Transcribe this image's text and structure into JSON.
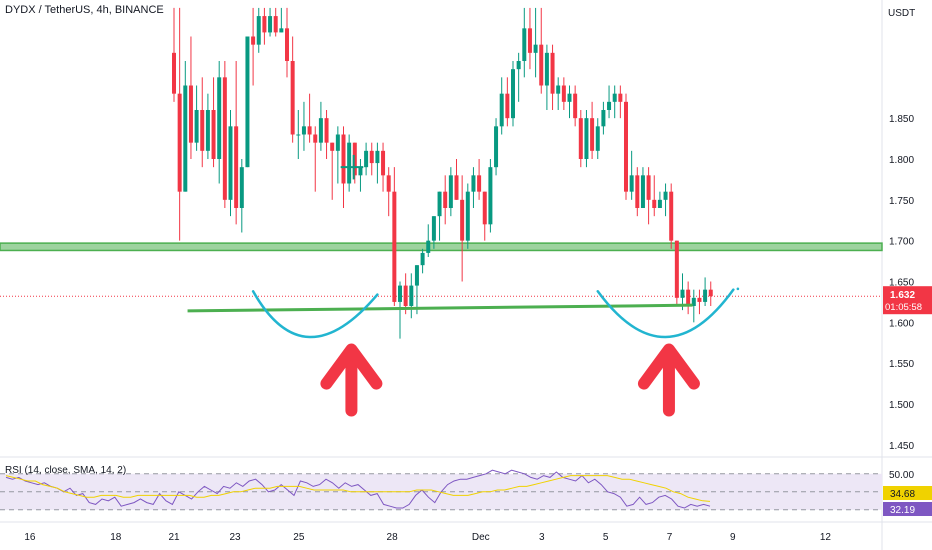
{
  "header": {
    "symbol_title": "DYDX / TetherUS, 4h, BINANCE",
    "currency": "USDT"
  },
  "price_label": {
    "value": "1.632",
    "countdown": "01:05:58",
    "color": "#f23645"
  },
  "colors": {
    "up": "#089981",
    "down": "#f23645",
    "zone": "#4caf50",
    "neckline": "#4caf50",
    "curve": "#22b5d0",
    "arrow": "#f23645",
    "rsi_line": "#7e57c2",
    "rsi_ma": "#f0d200",
    "rsi_band": "#ede7f6"
  },
  "chart_data": [
    {
      "type": "candlestick",
      "title": "DYDX / TetherUS, 4h, BINANCE",
      "ylabel": "USDT",
      "ylim": [
        1.435,
        1.985
      ],
      "y_ticks": [
        "1.850",
        "1.800",
        "1.750",
        "1.700",
        "1.650",
        "1.600",
        "1.550",
        "1.500",
        "1.450"
      ],
      "x_ticks": [
        {
          "label": "16",
          "index": -25.5
        },
        {
          "label": "18",
          "index": -10.3
        },
        {
          "label": "21",
          "index": 0
        },
        {
          "label": "23",
          "index": 10.8
        },
        {
          "label": "25",
          "index": 22.1
        },
        {
          "label": "28",
          "index": 38.6
        },
        {
          "label": "Dec",
          "index": 54.3
        },
        {
          "label": "3",
          "index": 65.1
        },
        {
          "label": "5",
          "index": 76.4
        },
        {
          "label": "7",
          "index": 87.7
        },
        {
          "label": "9",
          "index": 98.9
        },
        {
          "label": "12",
          "index": 115.3
        }
      ],
      "candles": [
        [
          1.93,
          1.985,
          1.87,
          1.88
        ],
        [
          1.88,
          1.985,
          1.7,
          1.76
        ],
        [
          1.76,
          1.92,
          1.76,
          1.89
        ],
        [
          1.89,
          1.95,
          1.8,
          1.82
        ],
        [
          1.82,
          1.89,
          1.81,
          1.86
        ],
        [
          1.86,
          1.9,
          1.79,
          1.81
        ],
        [
          1.81,
          1.88,
          1.8,
          1.86
        ],
        [
          1.86,
          1.9,
          1.79,
          1.8
        ],
        [
          1.8,
          1.92,
          1.77,
          1.9
        ],
        [
          1.9,
          1.92,
          1.74,
          1.75
        ],
        [
          1.75,
          1.86,
          1.73,
          1.84
        ],
        [
          1.84,
          1.92,
          1.72,
          1.74
        ],
        [
          1.74,
          1.8,
          1.71,
          1.79
        ],
        [
          1.79,
          1.95,
          1.79,
          1.95
        ],
        [
          1.95,
          1.985,
          1.89,
          1.94
        ],
        [
          1.94,
          1.985,
          1.93,
          1.975
        ],
        [
          1.975,
          1.985,
          1.94,
          1.955
        ],
        [
          1.955,
          1.985,
          1.95,
          1.975
        ],
        [
          1.975,
          1.985,
          1.95,
          1.955
        ],
        [
          1.955,
          1.985,
          1.955,
          1.96
        ],
        [
          1.96,
          1.985,
          1.9,
          1.92
        ],
        [
          1.92,
          1.95,
          1.82,
          1.83
        ],
        [
          1.83,
          1.86,
          1.8,
          1.83
        ],
        [
          1.83,
          1.87,
          1.81,
          1.84
        ],
        [
          1.84,
          1.88,
          1.82,
          1.83
        ],
        [
          1.83,
          1.84,
          1.76,
          1.82
        ],
        [
          1.82,
          1.87,
          1.81,
          1.85
        ],
        [
          1.85,
          1.86,
          1.8,
          1.82
        ],
        [
          1.82,
          1.82,
          1.75,
          1.81
        ],
        [
          1.81,
          1.84,
          1.77,
          1.83
        ],
        [
          1.83,
          1.84,
          1.74,
          1.77
        ],
        [
          1.77,
          1.83,
          1.76,
          1.82
        ],
        [
          1.82,
          1.82,
          1.77,
          1.78
        ],
        [
          1.78,
          1.8,
          1.76,
          1.79
        ],
        [
          1.79,
          1.82,
          1.78,
          1.81
        ],
        [
          1.81,
          1.82,
          1.78,
          1.795
        ],
        [
          1.795,
          1.82,
          1.77,
          1.81
        ],
        [
          1.81,
          1.82,
          1.76,
          1.78
        ],
        [
          1.78,
          1.79,
          1.73,
          1.76
        ],
        [
          1.76,
          1.79,
          1.62,
          1.625
        ],
        [
          1.625,
          1.65,
          1.58,
          1.645
        ],
        [
          1.645,
          1.66,
          1.61,
          1.62
        ],
        [
          1.62,
          1.66,
          1.605,
          1.645
        ],
        [
          1.645,
          1.67,
          1.61,
          1.67
        ],
        [
          1.67,
          1.69,
          1.66,
          1.685
        ],
        [
          1.685,
          1.72,
          1.68,
          1.7
        ],
        [
          1.7,
          1.73,
          1.69,
          1.73
        ],
        [
          1.73,
          1.76,
          1.7,
          1.76
        ],
        [
          1.76,
          1.78,
          1.72,
          1.74
        ],
        [
          1.74,
          1.79,
          1.73,
          1.78
        ],
        [
          1.78,
          1.8,
          1.75,
          1.75
        ],
        [
          1.75,
          1.78,
          1.65,
          1.7
        ],
        [
          1.7,
          1.77,
          1.69,
          1.76
        ],
        [
          1.76,
          1.79,
          1.74,
          1.78
        ],
        [
          1.78,
          1.8,
          1.75,
          1.76
        ],
        [
          1.76,
          1.76,
          1.7,
          1.72
        ],
        [
          1.72,
          1.8,
          1.71,
          1.79
        ],
        [
          1.79,
          1.85,
          1.78,
          1.84
        ],
        [
          1.84,
          1.9,
          1.83,
          1.88
        ],
        [
          1.88,
          1.9,
          1.84,
          1.85
        ],
        [
          1.85,
          1.92,
          1.84,
          1.91
        ],
        [
          1.91,
          1.93,
          1.87,
          1.92
        ],
        [
          1.92,
          1.985,
          1.9,
          1.96
        ],
        [
          1.96,
          1.985,
          1.91,
          1.93
        ],
        [
          1.93,
          1.985,
          1.9,
          1.94
        ],
        [
          1.94,
          1.985,
          1.88,
          1.89
        ],
        [
          1.89,
          1.94,
          1.86,
          1.93
        ],
        [
          1.93,
          1.94,
          1.86,
          1.88
        ],
        [
          1.88,
          1.9,
          1.86,
          1.89
        ],
        [
          1.89,
          1.9,
          1.86,
          1.87
        ],
        [
          1.87,
          1.89,
          1.85,
          1.88
        ],
        [
          1.88,
          1.89,
          1.84,
          1.85
        ],
        [
          1.85,
          1.86,
          1.79,
          1.8
        ],
        [
          1.8,
          1.86,
          1.79,
          1.85
        ],
        [
          1.85,
          1.87,
          1.8,
          1.81
        ],
        [
          1.81,
          1.85,
          1.8,
          1.84
        ],
        [
          1.84,
          1.87,
          1.83,
          1.86
        ],
        [
          1.86,
          1.89,
          1.85,
          1.87
        ],
        [
          1.87,
          1.89,
          1.85,
          1.88
        ],
        [
          1.88,
          1.89,
          1.85,
          1.87
        ],
        [
          1.87,
          1.88,
          1.75,
          1.76
        ],
        [
          1.76,
          1.81,
          1.75,
          1.78
        ],
        [
          1.78,
          1.79,
          1.73,
          1.74
        ],
        [
          1.74,
          1.79,
          1.74,
          1.78
        ],
        [
          1.78,
          1.79,
          1.72,
          1.75
        ],
        [
          1.75,
          1.78,
          1.73,
          1.74
        ],
        [
          1.74,
          1.76,
          1.74,
          1.75
        ],
        [
          1.75,
          1.77,
          1.73,
          1.76
        ],
        [
          1.76,
          1.77,
          1.69,
          1.7
        ],
        [
          1.7,
          1.7,
          1.62,
          1.63
        ],
        [
          1.63,
          1.66,
          1.615,
          1.64
        ],
        [
          1.64,
          1.65,
          1.61,
          1.62
        ],
        [
          1.62,
          1.64,
          1.6,
          1.63
        ],
        [
          1.63,
          1.64,
          1.61,
          1.625
        ],
        [
          1.625,
          1.655,
          1.62,
          1.64
        ],
        [
          1.64,
          1.65,
          1.62,
          1.632
        ]
      ],
      "annotations": {
        "resistance_zone": [
          1.688,
          1.697
        ],
        "neckline": {
          "x1": 2.4,
          "y1": 1.614,
          "x2": 91.8,
          "y2": 1.621
        },
        "bottom_curves": [
          {
            "points": [
              [
                14,
                1.638
              ],
              [
                24,
                1.582
              ],
              [
                36,
                1.634
              ]
            ]
          },
          {
            "points": [
              [
                75,
                1.638
              ],
              [
                87,
                1.582
              ],
              [
                99,
                1.64
              ]
            ]
          }
        ],
        "arrows": [
          {
            "x": 31.4,
            "ymin": 1.492,
            "ymax": 1.574
          },
          {
            "x": 87.6,
            "ymin": 1.492,
            "ymax": 1.574
          }
        ]
      }
    },
    {
      "type": "line",
      "title": "RSI (14, close, SMA, 14, 2)",
      "ylim": [
        26,
        56
      ],
      "y_ticks": [
        "50.00"
      ],
      "band": [
        30,
        50
      ],
      "current_values": {
        "rsi_ma": "34.68",
        "rsi": "32.19"
      },
      "rsi": [
        48,
        47,
        48,
        46,
        45,
        44,
        45,
        43,
        42,
        40,
        42,
        38,
        39,
        34,
        33,
        36,
        35,
        37,
        32,
        33,
        34,
        36,
        34,
        33,
        39,
        35,
        33,
        40,
        38,
        36,
        40,
        43,
        41,
        39,
        43,
        42,
        45,
        43,
        46,
        47,
        44,
        40,
        41,
        44,
        41,
        38,
        46,
        45,
        43,
        44,
        47,
        45,
        42,
        45,
        43,
        44,
        41,
        38,
        39,
        33,
        32,
        31,
        31,
        33,
        38,
        41,
        37,
        34,
        40,
        44,
        46,
        47,
        47,
        48,
        49,
        50,
        52,
        51,
        50,
        52,
        51,
        50,
        48,
        47,
        49,
        48,
        51,
        48,
        47,
        46,
        49,
        45,
        47,
        44,
        40,
        39,
        37,
        32,
        33,
        37,
        33,
        34,
        37,
        38,
        36,
        32,
        31,
        33,
        32,
        33,
        32
      ],
      "rsi_ma": [
        49,
        48,
        47,
        46,
        46,
        44,
        43,
        42,
        40,
        39,
        38,
        37,
        37,
        38,
        38,
        38,
        37,
        37,
        38,
        38,
        38,
        38,
        38,
        38,
        38,
        38,
        37,
        37,
        38,
        38,
        39,
        40,
        40,
        41,
        42,
        42,
        42,
        43,
        43,
        43,
        43,
        42,
        41,
        41,
        41,
        41,
        41,
        40,
        40,
        40,
        40,
        40,
        40,
        40,
        40,
        40,
        41,
        41,
        41,
        40,
        39,
        38,
        38,
        38,
        39,
        40,
        40,
        41,
        41,
        42,
        43,
        43,
        44,
        45,
        46,
        47,
        48,
        49,
        49,
        49,
        49,
        49,
        49,
        48,
        47,
        47,
        46,
        45,
        44,
        43,
        42,
        40,
        39,
        37,
        36,
        35,
        34.68
      ]
    }
  ]
}
